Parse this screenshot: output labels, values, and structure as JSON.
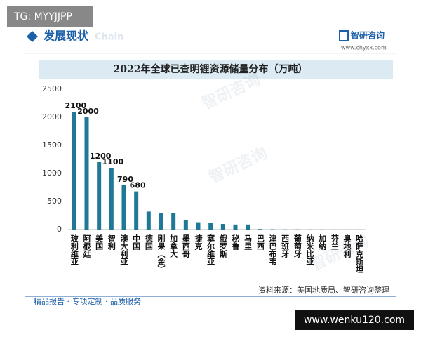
{
  "tag": "TG: MYYJJPP",
  "header": {
    "title": "发展现状",
    "title_en": "Chain",
    "logo": "智研咨询",
    "url": "www.chyxx.com"
  },
  "chart_data": {
    "type": "bar",
    "title": "2022年全球已查明锂资源储量分布（万吨）",
    "color": "#1f7896",
    "categories": [
      "玻利维亚",
      "阿根廷",
      "美国",
      "智利",
      "澳大利亚",
      "中国",
      "德国",
      "刚果（金）",
      "加拿大",
      "墨西哥",
      "捷克",
      "塞尔维亚",
      "俄罗斯",
      "秘鲁",
      "马里",
      "巴西",
      "津巴布韦",
      "西班牙",
      "葡萄牙",
      "纳米比亚",
      "加纳",
      "芬兰",
      "奥地利",
      "哈萨克斯坦"
    ],
    "values": [
      2100,
      2000,
      1200,
      1100,
      790,
      680,
      320,
      300,
      290,
      170,
      130,
      120,
      100,
      90,
      90,
      10,
      6,
      3,
      3,
      2,
      2,
      1,
      1,
      1
    ],
    "value_labels": [
      "2100",
      "2000",
      "1200",
      "1100",
      "790",
      "680",
      null,
      null,
      null,
      null,
      null,
      null,
      null,
      null,
      null,
      null,
      null,
      null,
      null,
      null,
      null,
      null,
      null,
      null
    ],
    "ylim": [
      0,
      2500
    ],
    "yticks": [
      0,
      500,
      1000,
      1500,
      2000,
      2500
    ],
    "grid": false,
    "source": "资料来源：美国地质局、智研咨询整理"
  },
  "watermark": "智研咨询",
  "footer": "精品报告 · 专项定制 · 品质服务",
  "site": "www.wenku120.com"
}
